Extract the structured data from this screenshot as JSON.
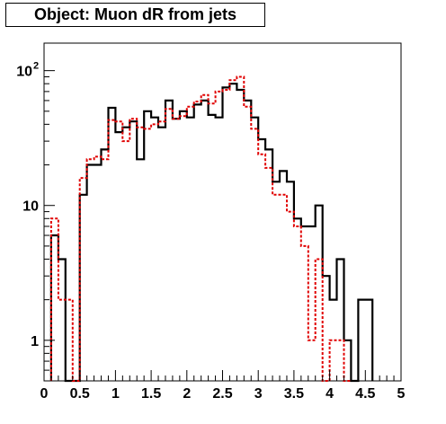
{
  "chart_data": {
    "type": "histogram-step",
    "title": "Object: Muon dR from jets",
    "xlabel": "",
    "ylabel": "",
    "xlim": [
      0,
      5
    ],
    "ylim": [
      0.5,
      160
    ],
    "yscale": "log",
    "grid": false,
    "bin_width": 0.1,
    "x_ticks": [
      0,
      0.5,
      1,
      1.5,
      2,
      2.5,
      3,
      3.5,
      4,
      4.5,
      5
    ],
    "x_tick_labels": [
      "0",
      "0.5",
      "1",
      "1.5",
      "2",
      "2.5",
      "3",
      "3.5",
      "4",
      "4.5",
      "5"
    ],
    "y_ticks": [
      {
        "value": 1,
        "label": "1",
        "sup": ""
      },
      {
        "value": 10,
        "label": "10",
        "sup": ""
      },
      {
        "value": 100,
        "label": "10",
        "sup": "2"
      }
    ],
    "series": [
      {
        "color": "#000000",
        "style": "solid",
        "bin_edges_start": 0.1,
        "values": [
          6,
          4,
          0,
          0,
          12,
          20,
          20,
          26,
          53,
          35,
          38,
          42,
          22,
          50,
          45,
          38,
          60,
          44,
          50,
          45,
          56,
          60,
          47,
          45,
          75,
          80,
          72,
          60,
          45,
          31,
          26,
          15,
          18,
          15,
          8,
          7,
          7,
          10,
          3,
          2,
          4,
          1,
          0,
          2,
          2
        ]
      },
      {
        "color": "#e00000",
        "style": "dashed",
        "bin_edges_start": 0.1,
        "values": [
          8,
          2,
          2,
          0,
          16,
          22,
          23,
          22,
          43,
          42,
          30,
          44,
          38,
          37,
          40,
          42,
          52,
          44,
          46,
          54,
          59,
          66,
          57,
          70,
          72,
          85,
          90,
          54,
          37,
          24,
          19,
          12,
          12,
          9,
          7,
          5,
          1,
          4,
          0,
          1,
          1,
          0
        ]
      }
    ]
  }
}
